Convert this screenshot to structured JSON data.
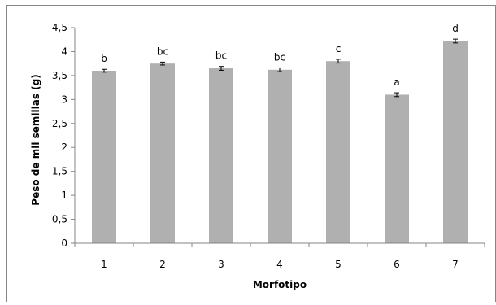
{
  "chart_data": {
    "type": "bar",
    "xlabel": "Morfotipo",
    "ylabel": "Peso de mil semillas  (g)",
    "categories": [
      "1",
      "2",
      "3",
      "4",
      "5",
      "6",
      "7"
    ],
    "values": [
      3.6,
      3.75,
      3.65,
      3.62,
      3.8,
      3.1,
      4.22
    ],
    "errors": [
      0.03,
      0.03,
      0.04,
      0.04,
      0.04,
      0.04,
      0.04
    ],
    "labels": [
      "b",
      "bc",
      "bc",
      "bc",
      "c",
      "a",
      "d"
    ],
    "ylim": [
      0,
      4.5
    ],
    "yticks": [
      0,
      0.5,
      1,
      1.5,
      2,
      2.5,
      3,
      3.5,
      4,
      4.5
    ],
    "ytick_labels": [
      "0",
      "0,5",
      "1",
      "1,5",
      "2",
      "2,5",
      "3",
      "3,5",
      "4",
      "4,5"
    ],
    "grid": false,
    "bar_color": "#b0b0b0",
    "axis_color": "#868686",
    "frame_color": "#868686"
  }
}
